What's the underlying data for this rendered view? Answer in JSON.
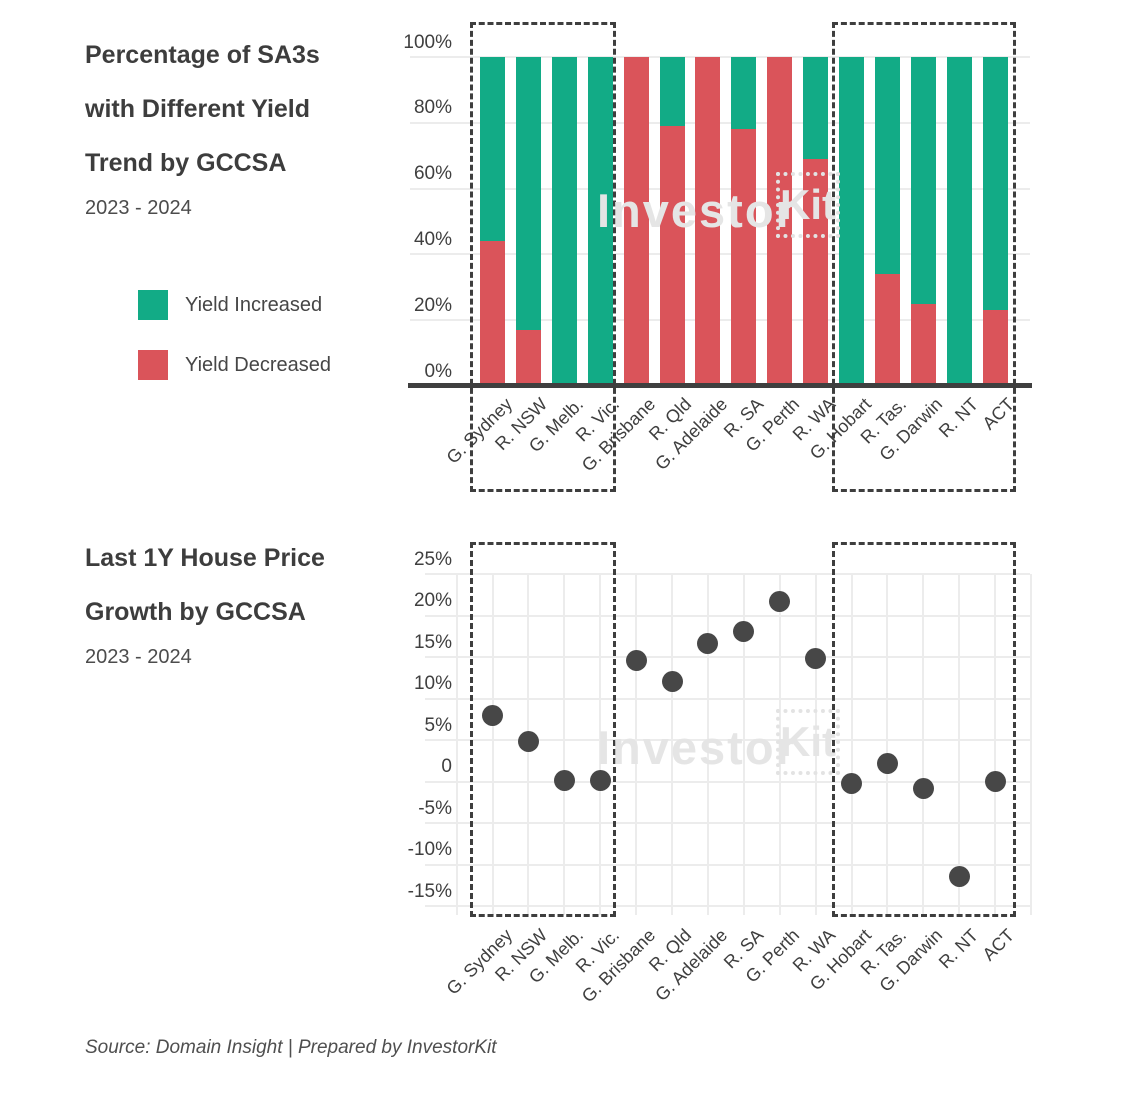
{
  "header_top": {
    "title_lines": [
      "Percentage of SA3s",
      "with Different Yield",
      "Trend by GCCSA"
    ],
    "subtitle": "2023 - 2024"
  },
  "header_bottom": {
    "title_lines": [
      "Last 1Y House Price",
      "Growth by GCCSA"
    ],
    "subtitle": "2023 - 2024"
  },
  "watermark": {
    "text": "Investor",
    "boxed": "Kit"
  },
  "source": "Source: Domain Insight | Prepared by InvestorKit",
  "colors": {
    "green": "#12ab86",
    "red": "#da545a",
    "dot": "#474747",
    "grid": "#ececec",
    "axis": "#3f3f3f"
  },
  "chart_data": [
    {
      "type": "bar",
      "stacked": true,
      "title": "Percentage of SA3s with Different Yield Trend by GCCSA",
      "subtitle": "2023 - 2024",
      "categories": [
        "G. Sydney",
        "R. NSW",
        "G. Melb.",
        "R. Vic.",
        "G. Brisbane",
        "R. Qld",
        "G. Adelaide",
        "R. SA",
        "G. Perth",
        "R. WA",
        "G. Hobart",
        "R. Tas.",
        "G. Darwin",
        "R. NT",
        "ACT"
      ],
      "series": [
        {
          "name": "Yield Increased",
          "color": "#12ab86",
          "values": [
            56,
            83,
            100,
            100,
            0,
            21,
            0,
            22,
            0,
            31,
            100,
            66,
            75,
            100,
            77
          ]
        },
        {
          "name": "Yield Decreased",
          "color": "#da545a",
          "values": [
            44,
            17,
            0,
            0,
            100,
            79,
            100,
            78,
            100,
            69,
            0,
            34,
            25,
            0,
            23
          ]
        }
      ],
      "ylim": [
        0,
        100
      ],
      "yticks": [
        {
          "v": 100,
          "label": "100%"
        },
        {
          "v": 80,
          "label": "80%"
        },
        {
          "v": 60,
          "label": "60%"
        },
        {
          "v": 40,
          "label": "40%"
        },
        {
          "v": 20,
          "label": "20%"
        },
        {
          "v": 0,
          "label": "0%"
        }
      ],
      "grid": "horizontal",
      "legend_position": "left",
      "highlight_boxes": [
        {
          "from": "G. Sydney",
          "to": "R. Vic.",
          "from_index": 0,
          "to_index": 3
        },
        {
          "from": "G. Hobart",
          "to": "ACT",
          "from_index": 10,
          "to_index": 14
        }
      ]
    },
    {
      "type": "scatter",
      "title": "Last 1Y House Price Growth by GCCSA",
      "subtitle": "2023 - 2024",
      "categories": [
        "G. Sydney",
        "R. NSW",
        "G. Melb.",
        "R. Vic.",
        "G. Brisbane",
        "R. Qld",
        "G. Adelaide",
        "R. SA",
        "G. Perth",
        "R. WA",
        "G. Hobart",
        "R. Tas.",
        "G. Darwin",
        "R. NT",
        "ACT"
      ],
      "values": [
        7.9,
        4.8,
        0.1,
        0.1,
        14.6,
        12.0,
        16.6,
        18.1,
        21.7,
        14.8,
        -0.2,
        2.2,
        -0.8,
        -11.5,
        0.0
      ],
      "point_color": "#474747",
      "ylim": [
        -17,
        26
      ],
      "yticks": [
        {
          "v": 25,
          "label": "25%"
        },
        {
          "v": 20,
          "label": "20%"
        },
        {
          "v": 15,
          "label": "15%"
        },
        {
          "v": 10,
          "label": "10%"
        },
        {
          "v": 5,
          "label": "5%"
        },
        {
          "v": 0,
          "label": "0"
        },
        {
          "v": -5,
          "label": "-5%"
        },
        {
          "v": -10,
          "label": "-10%"
        },
        {
          "v": -15,
          "label": "-15%"
        }
      ],
      "grid": "both",
      "highlight_boxes": [
        {
          "from": "G. Sydney",
          "to": "R. Vic.",
          "from_index": 0,
          "to_index": 3
        },
        {
          "from": "G. Hobart",
          "to": "ACT",
          "from_index": 10,
          "to_index": 14
        }
      ]
    }
  ]
}
